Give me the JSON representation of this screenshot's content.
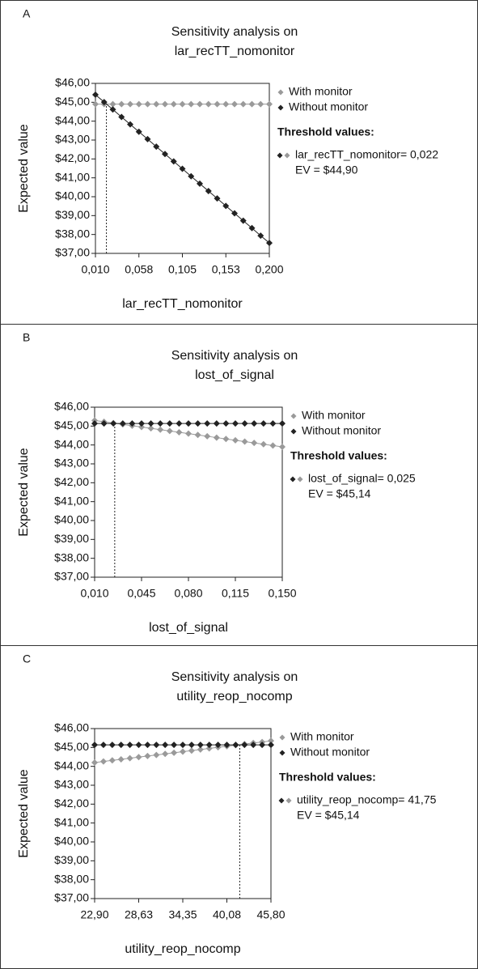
{
  "chart_data": [
    {
      "panel": "A",
      "type": "line",
      "marker": "diamond",
      "title": [
        "Sensitivity analysis on",
        "lar_recTT_nomonitor"
      ],
      "x_label": "lar_recTT_nomonitor",
      "y_label": "Expected value",
      "x": [
        0.01,
        0.0195,
        0.029,
        0.0385,
        0.048,
        0.0575,
        0.067,
        0.0765,
        0.086,
        0.0955,
        0.105,
        0.1145,
        0.124,
        0.1335,
        0.143,
        0.1525,
        0.162,
        0.1715,
        0.181,
        0.1905,
        0.2
      ],
      "xlim": [
        0.01,
        0.2
      ],
      "xticks": [
        {
          "value": 0.01,
          "label": "0,010"
        },
        {
          "value": 0.0575,
          "label": "0,058"
        },
        {
          "value": 0.105,
          "label": "0,105"
        },
        {
          "value": 0.1525,
          "label": "0,153"
        },
        {
          "value": 0.2,
          "label": "0,200"
        }
      ],
      "ylim": [
        37,
        46
      ],
      "yticks": [
        {
          "value": 37,
          "label": "$37,00"
        },
        {
          "value": 38,
          "label": "$38,00"
        },
        {
          "value": 39,
          "label": "$39,00"
        },
        {
          "value": 40,
          "label": "$40,00"
        },
        {
          "value": 41,
          "label": "$41,00"
        },
        {
          "value": 42,
          "label": "$42,00"
        },
        {
          "value": 43,
          "label": "$43,00"
        },
        {
          "value": 44,
          "label": "$44,00"
        },
        {
          "value": 45,
          "label": "$45,00"
        },
        {
          "value": 46,
          "label": "$46,00"
        }
      ],
      "series": [
        {
          "name": "With monitor",
          "color": "#9a9a9a",
          "values": [
            44.9,
            44.9,
            44.9,
            44.9,
            44.9,
            44.9,
            44.9,
            44.9,
            44.9,
            44.9,
            44.9,
            44.9,
            44.9,
            44.9,
            44.9,
            44.9,
            44.9,
            44.9,
            44.9,
            44.9,
            44.9
          ]
        },
        {
          "name": "Without monitor",
          "color": "#222222",
          "values": [
            45.4,
            45.01,
            44.62,
            44.22,
            43.83,
            43.44,
            43.05,
            42.65,
            42.26,
            41.87,
            41.48,
            41.08,
            40.69,
            40.3,
            39.91,
            39.51,
            39.12,
            38.73,
            38.34,
            37.94,
            37.55
          ]
        }
      ],
      "threshold_title": "Threshold values:",
      "threshold": {
        "text": "lar_recTT_nomonitor= 0,022",
        "x": 0.022,
        "ev": 44.9,
        "ev_text": "EV = $44,90"
      }
    },
    {
      "panel": "B",
      "type": "line",
      "marker": "diamond",
      "title": [
        "Sensitivity analysis on",
        "lost_of_signal"
      ],
      "x_label": "lost_of_signal",
      "y_label": "Expected value",
      "x": [
        0.01,
        0.017,
        0.024,
        0.031,
        0.038,
        0.045,
        0.052,
        0.059,
        0.066,
        0.073,
        0.08,
        0.087,
        0.094,
        0.101,
        0.108,
        0.115,
        0.122,
        0.129,
        0.136,
        0.143,
        0.15
      ],
      "xlim": [
        0.01,
        0.15
      ],
      "xticks": [
        {
          "value": 0.01,
          "label": "0,010"
        },
        {
          "value": 0.045,
          "label": "0,045"
        },
        {
          "value": 0.08,
          "label": "0,080"
        },
        {
          "value": 0.115,
          "label": "0,115"
        },
        {
          "value": 0.15,
          "label": "0,150"
        }
      ],
      "ylim": [
        37,
        46
      ],
      "yticks": [
        {
          "value": 37,
          "label": "$37,00"
        },
        {
          "value": 38,
          "label": "$38,00"
        },
        {
          "value": 39,
          "label": "$39,00"
        },
        {
          "value": 40,
          "label": "$40,00"
        },
        {
          "value": 41,
          "label": "$41,00"
        },
        {
          "value": 42,
          "label": "$42,00"
        },
        {
          "value": 43,
          "label": "$43,00"
        },
        {
          "value": 44,
          "label": "$44,00"
        },
        {
          "value": 45,
          "label": "$45,00"
        },
        {
          "value": 46,
          "label": "$46,00"
        }
      ],
      "series": [
        {
          "name": "With monitor",
          "color": "#9a9a9a",
          "values": [
            45.3,
            45.23,
            45.16,
            45.09,
            45.02,
            44.95,
            44.88,
            44.81,
            44.74,
            44.67,
            44.6,
            44.53,
            44.46,
            44.39,
            44.32,
            44.25,
            44.18,
            44.11,
            44.04,
            43.97,
            43.9
          ]
        },
        {
          "name": "Without monitor",
          "color": "#222222",
          "values": [
            45.14,
            45.14,
            45.14,
            45.14,
            45.14,
            45.14,
            45.14,
            45.14,
            45.14,
            45.14,
            45.14,
            45.14,
            45.14,
            45.14,
            45.14,
            45.14,
            45.14,
            45.14,
            45.14,
            45.14,
            45.14
          ]
        }
      ],
      "threshold_title": "Threshold values:",
      "threshold": {
        "text": "lost_of_signal= 0,025",
        "x": 0.025,
        "ev": 45.14,
        "ev_text": "EV = $45,14"
      }
    },
    {
      "panel": "C",
      "type": "line",
      "marker": "diamond",
      "title": [
        "Sensitivity analysis on",
        "utility_reop_nocomp"
      ],
      "x_label": "utility_reop_nocomp",
      "y_label": "Expected value",
      "x": [
        22.9,
        24.045,
        25.19,
        26.335,
        27.48,
        28.625,
        29.77,
        30.915,
        32.06,
        33.205,
        34.35,
        35.495,
        36.64,
        37.785,
        38.93,
        40.075,
        41.22,
        42.365,
        43.51,
        44.655,
        45.8
      ],
      "xlim": [
        22.9,
        45.8
      ],
      "xticks": [
        {
          "value": 22.9,
          "label": "22,90"
        },
        {
          "value": 28.625,
          "label": "28,63"
        },
        {
          "value": 34.35,
          "label": "34,35"
        },
        {
          "value": 40.075,
          "label": "40,08"
        },
        {
          "value": 45.8,
          "label": "45,80"
        }
      ],
      "ylim": [
        37,
        46
      ],
      "yticks": [
        {
          "value": 37,
          "label": "$37,00"
        },
        {
          "value": 38,
          "label": "$38,00"
        },
        {
          "value": 39,
          "label": "$39,00"
        },
        {
          "value": 40,
          "label": "$40,00"
        },
        {
          "value": 41,
          "label": "$41,00"
        },
        {
          "value": 42,
          "label": "$42,00"
        },
        {
          "value": 43,
          "label": "$43,00"
        },
        {
          "value": 44,
          "label": "$44,00"
        },
        {
          "value": 45,
          "label": "$45,00"
        },
        {
          "value": 46,
          "label": "$46,00"
        }
      ],
      "series": [
        {
          "name": "With monitor",
          "color": "#9a9a9a",
          "values": [
            44.2,
            44.26,
            44.32,
            44.37,
            44.43,
            44.49,
            44.55,
            44.6,
            44.66,
            44.72,
            44.78,
            44.83,
            44.89,
            44.95,
            45.01,
            45.06,
            45.12,
            45.18,
            45.24,
            45.29,
            45.35
          ]
        },
        {
          "name": "Without monitor",
          "color": "#222222",
          "values": [
            45.14,
            45.14,
            45.14,
            45.14,
            45.14,
            45.14,
            45.14,
            45.14,
            45.14,
            45.14,
            45.14,
            45.14,
            45.14,
            45.14,
            45.14,
            45.14,
            45.14,
            45.14,
            45.14,
            45.14,
            45.14
          ]
        }
      ],
      "threshold_title": "Threshold values:",
      "threshold": {
        "text": "utility_reop_nocomp= 41,75",
        "x": 41.75,
        "ev": 45.14,
        "ev_text": "EV = $45,14"
      }
    }
  ]
}
